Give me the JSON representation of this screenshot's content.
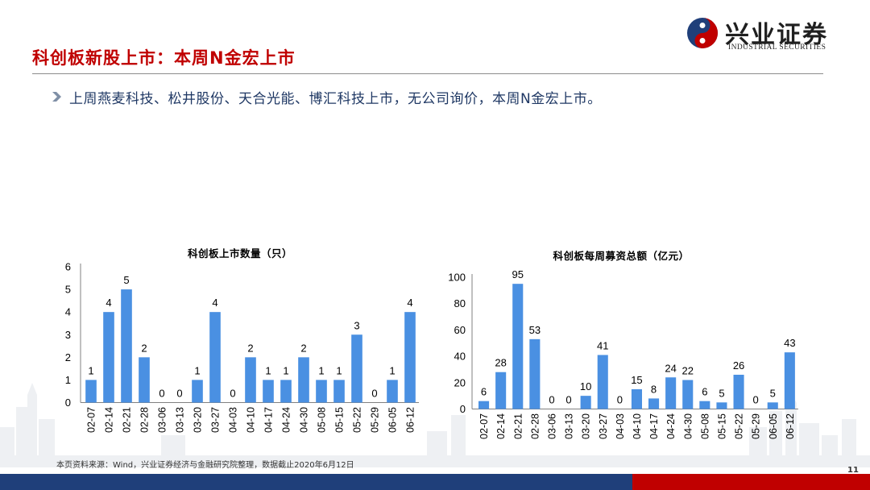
{
  "header": {
    "title": "科创板新股上市：本周N金宏上市",
    "bullet": "上周燕麦科技、松井股份、天合光能、博汇科技上市，无公司询价，本周N金宏上市。"
  },
  "logo": {
    "name": "兴业证券",
    "english": "INDUSTRIAL SECURITIES"
  },
  "colors": {
    "accent": "#c00000",
    "bar": "#4a90e2",
    "footer_blue": "#1f3f7a"
  },
  "chart_data": [
    {
      "type": "bar",
      "title": "科创板上市数量（只）",
      "categories": [
        "02-07",
        "02-14",
        "02-21",
        "02-28",
        "03-06",
        "03-13",
        "03-20",
        "03-27",
        "04-03",
        "04-10",
        "04-17",
        "04-24",
        "04-30",
        "05-08",
        "05-15",
        "05-22",
        "05-29",
        "06-05",
        "06-12"
      ],
      "values": [
        1,
        4,
        5,
        2,
        0,
        0,
        1,
        4,
        0,
        2,
        1,
        1,
        2,
        1,
        1,
        3,
        0,
        1,
        4
      ],
      "ylim": [
        0,
        6
      ],
      "yticks": [
        0,
        1,
        2,
        3,
        4,
        5,
        6
      ],
      "grid": false,
      "data_labels": true
    },
    {
      "type": "bar",
      "title": "科创板每周募资总额（亿元）",
      "categories": [
        "02-07",
        "02-14",
        "02-21",
        "02-28",
        "03-06",
        "03-13",
        "03-20",
        "03-27",
        "04-03",
        "04-10",
        "04-17",
        "04-24",
        "04-30",
        "05-08",
        "05-15",
        "05-22",
        "05-29",
        "06-05",
        "06-12"
      ],
      "values": [
        6,
        28,
        95,
        53,
        0,
        0,
        10,
        41,
        0,
        15,
        8,
        24,
        22,
        6,
        5,
        26,
        0,
        5,
        43
      ],
      "ylim": [
        0,
        100
      ],
      "yticks": [
        0,
        20,
        40,
        60,
        80,
        100
      ],
      "grid": false,
      "data_labels": true
    }
  ],
  "footer": {
    "source": "本页资料来源：Wind，兴业证券经济与金融研究院整理，数据截止2020年6月12日",
    "page_number": "11"
  }
}
